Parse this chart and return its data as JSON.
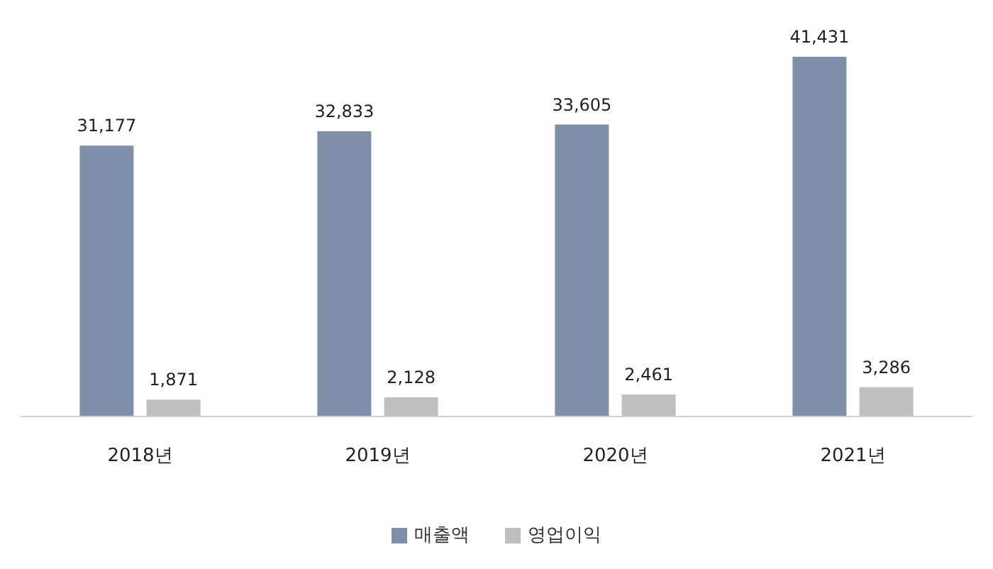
{
  "chart_data": {
    "type": "bar",
    "categories": [
      "2018년",
      "2019년",
      "2020년",
      "2021년"
    ],
    "series": [
      {
        "name": "매출액",
        "color": "#7f8fa9",
        "values": [
          31177,
          32833,
          33605,
          41431
        ],
        "value_labels": [
          "31,177",
          "32,833",
          "33,605",
          "41,431"
        ]
      },
      {
        "name": "영업이익",
        "color": "#bfbfbf",
        "values": [
          1871,
          2128,
          2461,
          3286
        ],
        "value_labels": [
          "1,871",
          "2,128",
          "2,461",
          "3,286"
        ]
      }
    ],
    "legend": "bottom"
  }
}
